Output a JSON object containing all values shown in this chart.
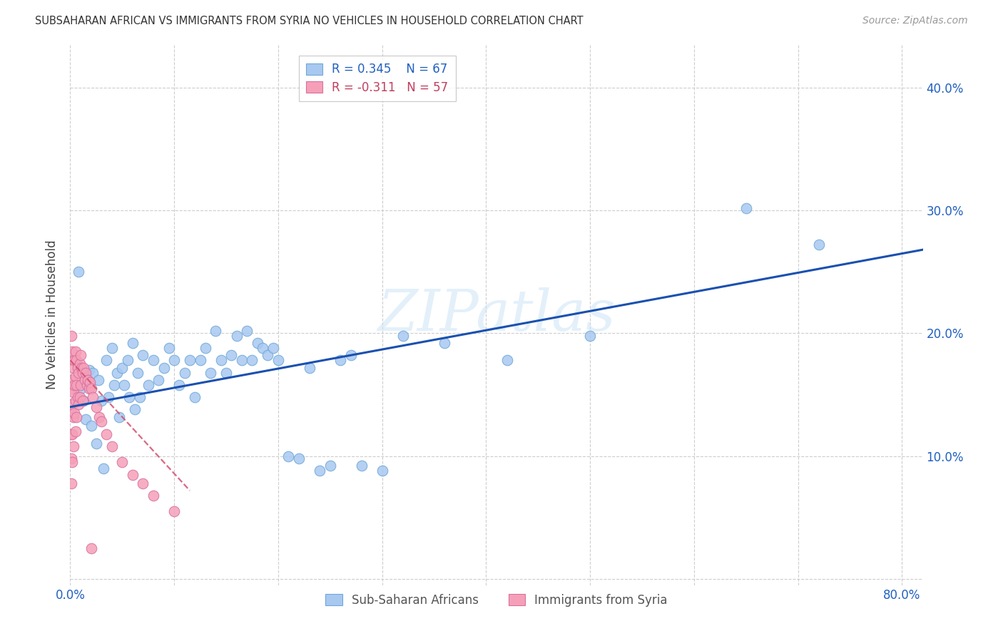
{
  "title": "SUBSAHARAN AFRICAN VS IMMIGRANTS FROM SYRIA NO VEHICLES IN HOUSEHOLD CORRELATION CHART",
  "source": "Source: ZipAtlas.com",
  "ylabel": "No Vehicles in Household",
  "xlim": [
    0.0,
    0.82
  ],
  "ylim": [
    -0.005,
    0.435
  ],
  "xtick_positions": [
    0.0,
    0.1,
    0.2,
    0.3,
    0.4,
    0.5,
    0.6,
    0.7,
    0.8
  ],
  "xticklabels": [
    "0.0%",
    "",
    "",
    "",
    "",
    "",
    "",
    "",
    "80.0%"
  ],
  "ytick_right_positions": [
    0.1,
    0.2,
    0.3,
    0.4
  ],
  "ytick_right_labels": [
    "10.0%",
    "20.0%",
    "30.0%",
    "40.0%"
  ],
  "scatter_blue_color": "#a8c8f0",
  "scatter_blue_edge": "#6ea8d8",
  "scatter_pink_color": "#f5a0b8",
  "scatter_pink_edge": "#d870a0",
  "line_blue_color": "#1a50b0",
  "line_pink_color": "#d05070",
  "watermark": "ZIPatlas",
  "background_color": "#ffffff",
  "grid_color": "#c8c8c8",
  "blue_points_x": [
    0.008,
    0.01,
    0.013,
    0.015,
    0.018,
    0.02,
    0.022,
    0.025,
    0.027,
    0.03,
    0.032,
    0.035,
    0.037,
    0.04,
    0.042,
    0.045,
    0.047,
    0.05,
    0.052,
    0.055,
    0.057,
    0.06,
    0.062,
    0.065,
    0.067,
    0.07,
    0.075,
    0.08,
    0.085,
    0.09,
    0.095,
    0.1,
    0.105,
    0.11,
    0.115,
    0.12,
    0.125,
    0.13,
    0.135,
    0.14,
    0.145,
    0.15,
    0.155,
    0.16,
    0.165,
    0.17,
    0.175,
    0.18,
    0.185,
    0.19,
    0.195,
    0.2,
    0.21,
    0.22,
    0.23,
    0.24,
    0.25,
    0.26,
    0.27,
    0.28,
    0.3,
    0.32,
    0.36,
    0.42,
    0.5,
    0.65,
    0.72
  ],
  "blue_points_y": [
    0.25,
    0.155,
    0.145,
    0.13,
    0.17,
    0.125,
    0.168,
    0.11,
    0.162,
    0.145,
    0.09,
    0.178,
    0.148,
    0.188,
    0.158,
    0.168,
    0.132,
    0.172,
    0.158,
    0.178,
    0.148,
    0.192,
    0.138,
    0.168,
    0.148,
    0.182,
    0.158,
    0.178,
    0.162,
    0.172,
    0.188,
    0.178,
    0.158,
    0.168,
    0.178,
    0.148,
    0.178,
    0.188,
    0.168,
    0.202,
    0.178,
    0.168,
    0.182,
    0.198,
    0.178,
    0.202,
    0.178,
    0.192,
    0.188,
    0.182,
    0.188,
    0.178,
    0.1,
    0.098,
    0.172,
    0.088,
    0.092,
    0.178,
    0.182,
    0.092,
    0.088,
    0.198,
    0.192,
    0.178,
    0.198,
    0.302,
    0.272
  ],
  "pink_points_x": [
    0.001,
    0.001,
    0.001,
    0.001,
    0.001,
    0.001,
    0.001,
    0.002,
    0.002,
    0.002,
    0.002,
    0.002,
    0.003,
    0.003,
    0.003,
    0.003,
    0.004,
    0.004,
    0.004,
    0.005,
    0.005,
    0.005,
    0.005,
    0.006,
    0.006,
    0.006,
    0.007,
    0.007,
    0.008,
    0.008,
    0.009,
    0.009,
    0.01,
    0.01,
    0.011,
    0.012,
    0.012,
    0.013,
    0.014,
    0.015,
    0.016,
    0.017,
    0.018,
    0.019,
    0.02,
    0.022,
    0.025,
    0.028,
    0.03,
    0.035,
    0.04,
    0.05,
    0.06,
    0.07,
    0.08,
    0.1,
    0.02
  ],
  "pink_points_y": [
    0.198,
    0.178,
    0.155,
    0.135,
    0.118,
    0.098,
    0.078,
    0.185,
    0.162,
    0.142,
    0.118,
    0.095,
    0.172,
    0.152,
    0.132,
    0.108,
    0.178,
    0.158,
    0.135,
    0.185,
    0.165,
    0.145,
    0.12,
    0.178,
    0.158,
    0.132,
    0.172,
    0.148,
    0.168,
    0.142,
    0.175,
    0.148,
    0.182,
    0.158,
    0.172,
    0.168,
    0.145,
    0.172,
    0.162,
    0.168,
    0.158,
    0.162,
    0.155,
    0.16,
    0.155,
    0.148,
    0.14,
    0.132,
    0.128,
    0.118,
    0.108,
    0.095,
    0.085,
    0.078,
    0.068,
    0.055,
    0.025
  ],
  "blue_line_x": [
    0.0,
    0.82
  ],
  "blue_line_y": [
    0.14,
    0.268
  ],
  "pink_line_x": [
    0.0,
    0.115
  ],
  "pink_line_y": [
    0.178,
    0.072
  ],
  "legend1_r": "R = 0.345",
  "legend1_n": "N = 67",
  "legend2_r": "R = -0.311",
  "legend2_n": "N = 57",
  "label1": "Sub-Saharan Africans",
  "label2": "Immigrants from Syria"
}
